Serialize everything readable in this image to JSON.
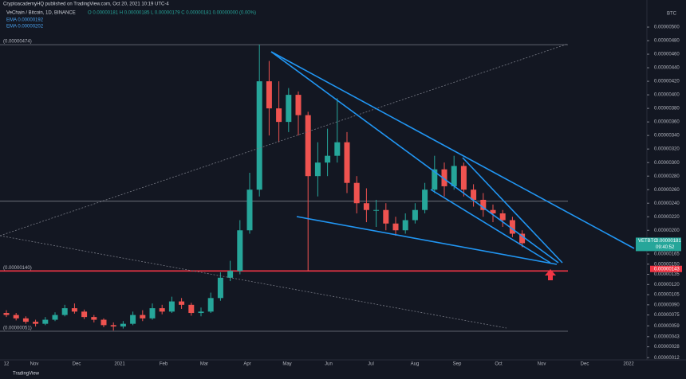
{
  "header": "CryptoacademyHQ published on TradingView.com, Oct 20, 2021 10:19 UTC-4",
  "footer": "TradingView",
  "chart_data": {
    "type": "candlestick",
    "title": "VeChain / Bitcoin, 1D, BINANCE",
    "ohlc_text": "O 0.00000181 H 0.00000185 L 0.00000179 C 0.00000181 0.00000000 (0.00%)",
    "indicators": [
      "EMA 0.00000192",
      "EMA 0.00000202"
    ],
    "y_unit": "BTC",
    "symbol": "VETBTC",
    "last_price": {
      "value": 1.81e-06,
      "label": "0.00000181"
    },
    "countdown": "09:40:52",
    "target_price": {
      "value": 1.43e-06,
      "label": "0.00000143"
    },
    "x_labels": [
      "12",
      "Nov",
      "Dec",
      "2021",
      "Feb",
      "Mar",
      "Apr",
      "May",
      "Jun",
      "Jul",
      "Aug",
      "Sep",
      "Oct",
      "Nov",
      "Dec",
      "2022"
    ],
    "ylim": [
      4e-08,
      5.4e-06
    ],
    "yticks": [
      {
        "value": 5e-06,
        "label": "0.00000500"
      },
      {
        "value": 4.8e-06,
        "label": "0.00000480"
      },
      {
        "value": 4.6e-06,
        "label": "0.00000460"
      },
      {
        "value": 4.4e-06,
        "label": "0.00000440"
      },
      {
        "value": 4.2e-06,
        "label": "0.00000420"
      },
      {
        "value": 4e-06,
        "label": "0.00000400"
      },
      {
        "value": 3.8e-06,
        "label": "0.00000380"
      },
      {
        "value": 3.6e-06,
        "label": "0.00000360"
      },
      {
        "value": 3.4e-06,
        "label": "0.00000340"
      },
      {
        "value": 3.2e-06,
        "label": "0.00000320"
      },
      {
        "value": 3e-06,
        "label": "0.00000300"
      },
      {
        "value": 2.8e-06,
        "label": "0.00000280"
      },
      {
        "value": 2.6e-06,
        "label": "0.00000260"
      },
      {
        "value": 2.4e-06,
        "label": "0.00000240"
      },
      {
        "value": 2.2e-06,
        "label": "0.00000220"
      },
      {
        "value": 2e-06,
        "label": "0.00000200"
      },
      {
        "value": 1.65e-06,
        "label": "0.00000165"
      },
      {
        "value": 1.5e-06,
        "label": "0.00000150"
      },
      {
        "value": 1.35e-06,
        "label": "0.00000135"
      },
      {
        "value": 1.2e-06,
        "label": "0.00000120"
      },
      {
        "value": 1.05e-06,
        "label": "0.00000105"
      },
      {
        "value": 9e-07,
        "label": "0.00000090"
      },
      {
        "value": 7.5e-07,
        "label": "0.00000075"
      },
      {
        "value": 5.9e-07,
        "label": "0.00000059"
      },
      {
        "value": 4.3e-07,
        "label": "0.00000043"
      },
      {
        "value": 2.8e-07,
        "label": "0.00000028"
      },
      {
        "value": 1.2e-07,
        "label": "0.00000012"
      }
    ],
    "levels": [
      {
        "value": 4.74e-06,
        "label": "(0.00000474)",
        "color": "#787b86"
      },
      {
        "value": 2.43e-06,
        "color": "#787b86"
      },
      {
        "value": 1.4e-06,
        "label": "(0.00000140)",
        "color": "#f23645"
      },
      {
        "value": 5.1e-07,
        "label": "(0.00000051)",
        "color": "#787b86"
      }
    ],
    "up_color": "#26a69a",
    "down_color": "#ef5350",
    "open": [
      7.8e-07,
      7.5e-07,
      7e-07,
      6.5e-07,
      6.2e-07,
      6.8e-07,
      7.5e-07,
      8.5e-07,
      8e-07,
      7.2e-07,
      6.8e-07,
      6e-07,
      5.8e-07,
      6.2e-07,
      7.5e-07,
      7e-07,
      8.5e-07,
      8e-07,
      9.5e-07,
      9e-07,
      7.8e-07,
      8e-07,
      1e-06,
      1.3e-06,
      1.4e-06,
      2e-06,
      2.6e-06,
      4.2e-06,
      3.8e-06,
      3.6e-06,
      4e-06,
      3.7e-06,
      2.8e-06,
      3e-06,
      3.1e-06,
      3.3e-06,
      2.7e-06,
      2.4e-06,
      2.3e-06,
      2.3e-06,
      2.1e-06,
      2e-06,
      2.15e-06,
      2.3e-06,
      2.6e-06,
      2.9e-06,
      2.65e-06,
      2.95e-06,
      2.6e-06,
      2.45e-06,
      2.3e-06,
      2.25e-06,
      2.15e-06,
      1.95e-06
    ],
    "high": [
      8.2e-07,
      7.8e-07,
      7.3e-07,
      6.8e-07,
      7.2e-07,
      7.9e-07,
      9e-07,
      9.2e-07,
      8.3e-07,
      7.5e-07,
      7e-07,
      6.4e-07,
      6.6e-07,
      8e-07,
      8.2e-07,
      9.2e-07,
      9e-07,
      1.02e-06,
      1e-06,
      9.3e-07,
      8.6e-07,
      1.08e-06,
      1.38e-06,
      1.55e-06,
      2.15e-06,
      2.85e-06,
      4.74e-06,
      4.5e-06,
      4.2e-06,
      4.1e-06,
      4.05e-06,
      3.75e-06,
      3.3e-06,
      3.5e-06,
      3.95e-06,
      3.45e-06,
      2.8e-06,
      2.62e-06,
      2.45e-06,
      2.4e-06,
      2.2e-06,
      2.25e-06,
      2.4e-06,
      2.7e-06,
      3.1e-06,
      3e-06,
      3.1e-06,
      3e-06,
      2.68e-06,
      2.55e-06,
      2.38e-06,
      2.3e-06,
      2.2e-06,
      2e-06
    ],
    "low": [
      7.2e-07,
      6.7e-07,
      6.2e-07,
      5.8e-07,
      6e-07,
      6.6e-07,
      7.3e-07,
      7.7e-07,
      6.9e-07,
      6.4e-07,
      5.7e-07,
      5.2e-07,
      5.5e-07,
      6e-07,
      6.6e-07,
      6.8e-07,
      7.6e-07,
      7.8e-07,
      8.4e-07,
      7.4e-07,
      7.3e-07,
      7.8e-07,
      9.6e-07,
      1.25e-06,
      1.35e-06,
      1.95e-06,
      2.5e-06,
      3.4e-06,
      3.3e-06,
      3.45e-06,
      3.4e-06,
      1.4e-06,
      2.5e-06,
      2.8e-06,
      3e-06,
      2.55e-06,
      2.25e-06,
      2.12e-06,
      2.05e-06,
      2e-06,
      1.92e-06,
      1.95e-06,
      2.1e-06,
      2.25e-06,
      2.55e-06,
      2.5e-06,
      2.6e-06,
      2.5e-06,
      2.35e-06,
      2.2e-06,
      2.12e-06,
      2.05e-06,
      1.9e-06,
      1.75e-06
    ],
    "close": [
      7.5e-07,
      7e-07,
      6.5e-07,
      6.2e-07,
      6.8e-07,
      7.5e-07,
      8.5e-07,
      8e-07,
      7.2e-07,
      6.8e-07,
      6e-07,
      5.8e-07,
      6.2e-07,
      7.5e-07,
      7e-07,
      8.5e-07,
      8e-07,
      9.5e-07,
      9e-07,
      7.8e-07,
      8e-07,
      1e-06,
      1.3e-06,
      1.4e-06,
      2e-06,
      2.6e-06,
      4.2e-06,
      3.8e-06,
      3.6e-06,
      4e-06,
      3.7e-06,
      2.8e-06,
      3e-06,
      3.1e-06,
      3.3e-06,
      2.7e-06,
      2.4e-06,
      2.3e-06,
      2.3e-06,
      2.1e-06,
      2e-06,
      2.15e-06,
      2.3e-06,
      2.6e-06,
      2.9e-06,
      2.65e-06,
      2.95e-06,
      2.6e-06,
      2.45e-06,
      2.3e-06,
      2.25e-06,
      2.15e-06,
      1.95e-06,
      1.81e-06
    ]
  }
}
